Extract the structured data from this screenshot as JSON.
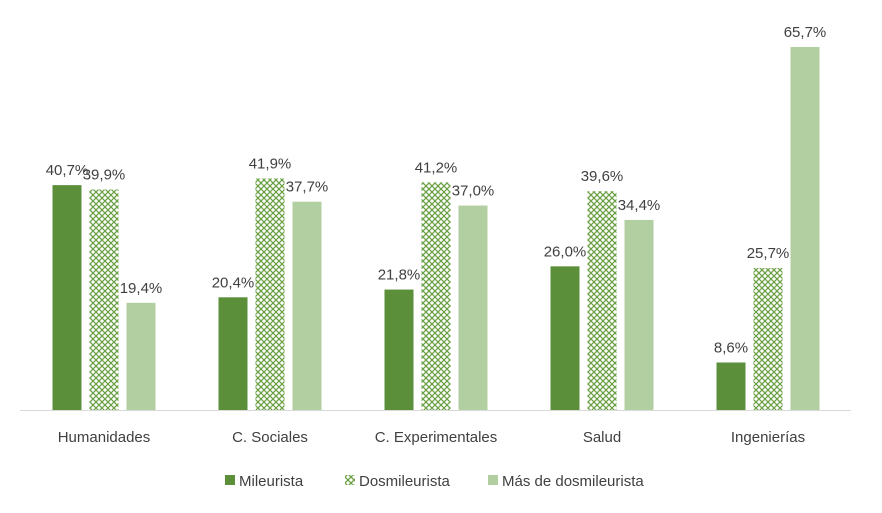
{
  "chart_data": {
    "type": "bar",
    "title": "",
    "xlabel": "",
    "ylabel": "",
    "categories": [
      "Humanidades",
      "C. Sociales",
      "C. Experimentales",
      "Salud",
      "Ingenierías"
    ],
    "series": [
      {
        "name": "Mileurista",
        "values": [
          40.7,
          20.4,
          21.8,
          26.0,
          8.6
        ],
        "labels": [
          "40,7%",
          "20,4%",
          "21,8%",
          "26,0%",
          "8,6%"
        ],
        "color": "#5b8f3a",
        "fill": "solid"
      },
      {
        "name": "Dosmileurista",
        "values": [
          39.9,
          41.9,
          41.2,
          39.6,
          25.7
        ],
        "labels": [
          "39,9%",
          "41,9%",
          "41,2%",
          "39,6%",
          "25,7%"
        ],
        "color": "#6aa044",
        "fill": "crosshatch"
      },
      {
        "name": "Más de dosmileurista",
        "values": [
          19.4,
          37.7,
          37.0,
          34.4,
          65.7
        ],
        "labels": [
          "19,4%",
          "37,7%",
          "37,0%",
          "34,4%",
          "65,7%"
        ],
        "color": "#b2cfa2",
        "fill": "solid"
      }
    ],
    "ylim": [
      0,
      66
    ],
    "grid": false,
    "legend_position": "bottom"
  }
}
